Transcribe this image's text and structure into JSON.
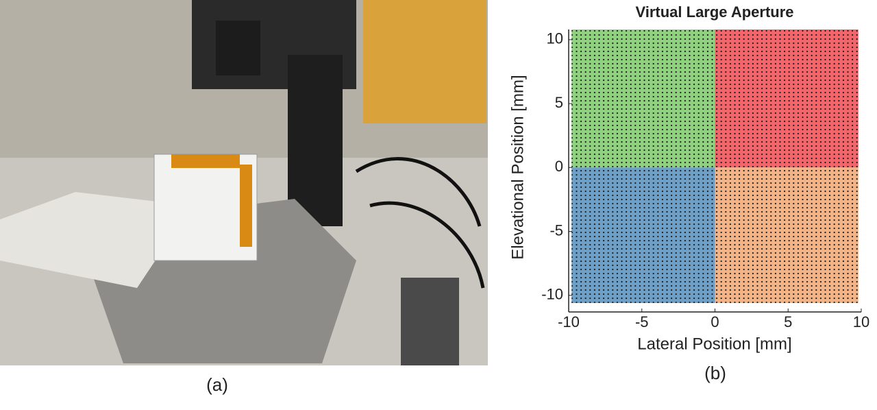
{
  "panel_a": {
    "caption": "(a)"
  },
  "chart_data": {
    "type": "region",
    "title": "Virtual Large Aperture",
    "xlabel": "Lateral Position [mm]",
    "ylabel": "Elevational Position [mm]",
    "caption": "(b)",
    "xlim": [
      -10,
      10
    ],
    "ylim": [
      -11.3,
      10.8
    ],
    "xticks": [
      -10,
      -5,
      0,
      5,
      10
    ],
    "yticks": [
      -10,
      -5,
      0,
      5,
      10
    ],
    "regions": [
      {
        "xrange": [
          -9.8,
          0
        ],
        "yrange": [
          0,
          10.8
        ],
        "color": "#8fd17f"
      },
      {
        "xrange": [
          0,
          9.8
        ],
        "yrange": [
          0,
          10.8
        ],
        "color": "#f2656a"
      },
      {
        "xrange": [
          -9.8,
          0
        ],
        "yrange": [
          -10.6,
          0
        ],
        "color": "#6e9fc6"
      },
      {
        "xrange": [
          0,
          9.8
        ],
        "yrange": [
          -10.6,
          0
        ],
        "color": "#f2b487"
      }
    ]
  }
}
